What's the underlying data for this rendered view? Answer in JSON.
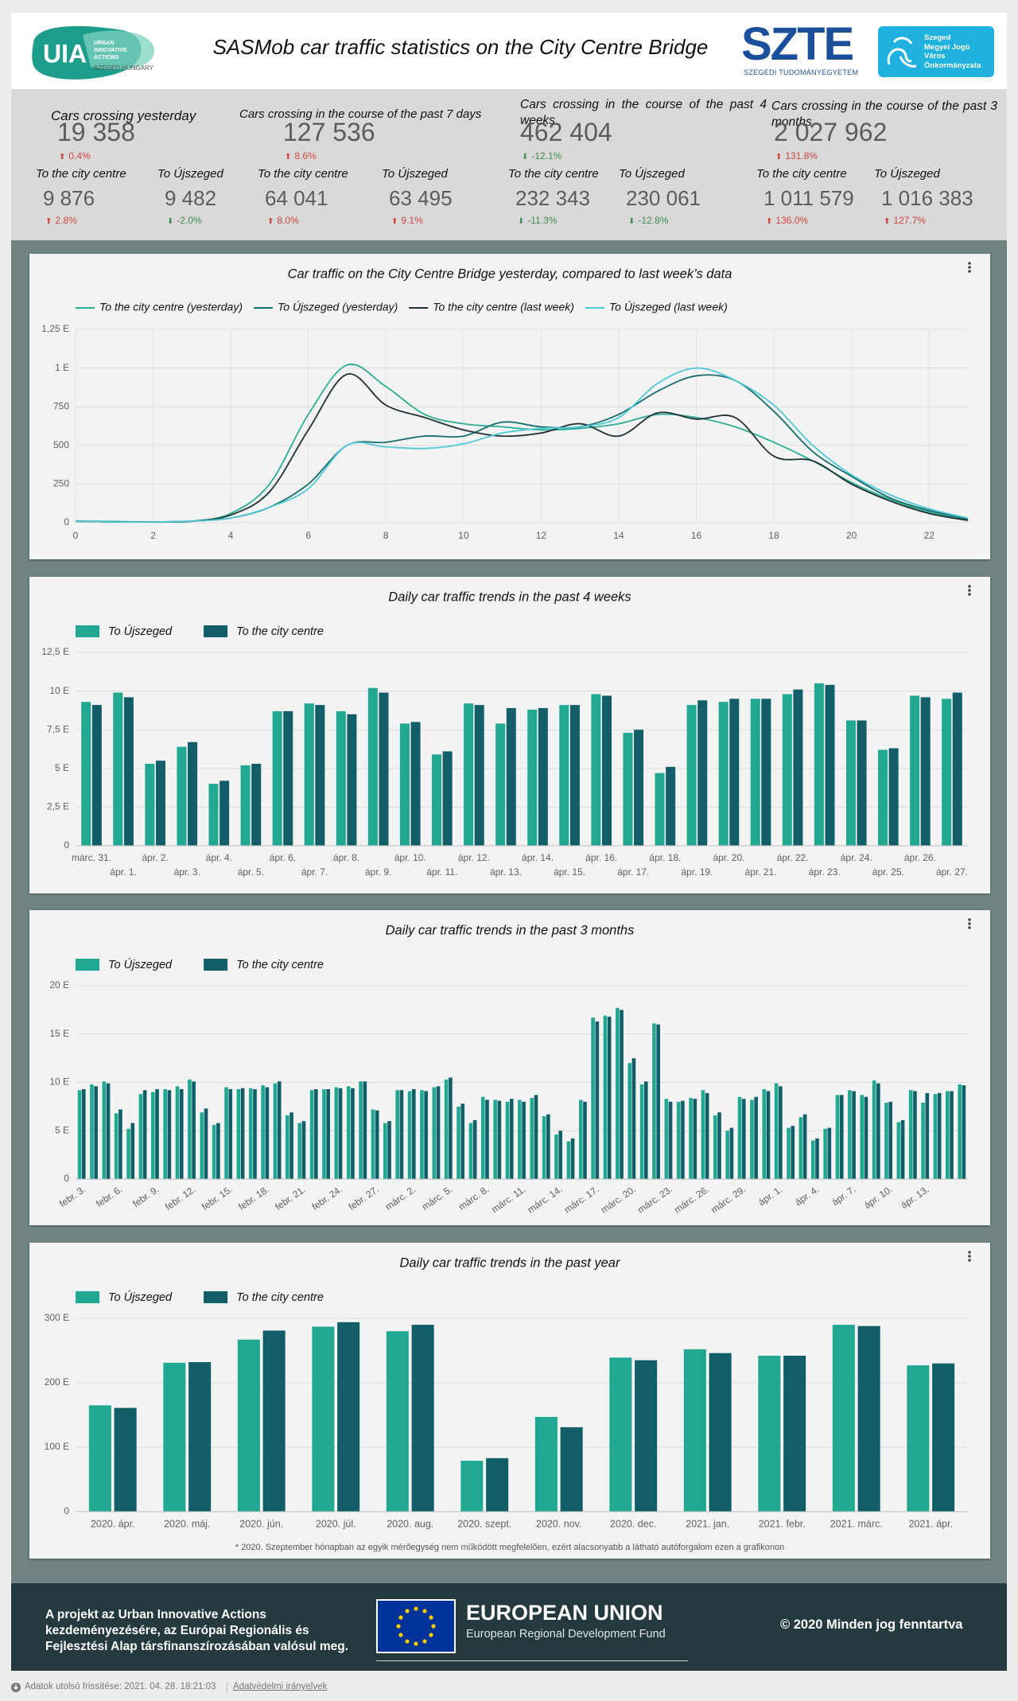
{
  "header": {
    "uia_logo": {
      "text": "UIA",
      "lines": [
        "URBAN",
        "INNOVATIVE",
        "ACTIONS"
      ],
      "location": "SZEGED HUNGARY"
    },
    "title": "SASMob car traffic statistics on the City Centre Bridge",
    "szte_logo": {
      "text": "SZTE",
      "subtitle": "SZEGEDI TUDOMÁNYEGYETEM"
    },
    "city_logo": {
      "lines": [
        "Szeged",
        "Megyei Jogú",
        "Város",
        "Önkormányzata"
      ]
    }
  },
  "kpis": [
    {
      "title": "Cars crossing yesterday",
      "value": "19 358",
      "change": "0.4%",
      "subs": [
        {
          "label": "To the city centre",
          "value": "9 876",
          "change": "2.8%"
        },
        {
          "label": "To Újszeged",
          "value": "9 482",
          "change": "-2.0%"
        }
      ]
    },
    {
      "title": "Cars crossing in the course of the past 7 days",
      "value": "127 536",
      "change": "8.6%",
      "subs": [
        {
          "label": "To the city centre",
          "value": "64 041",
          "change": "8.0%"
        },
        {
          "label": "To Újszeged",
          "value": "63 495",
          "change": "9.1%"
        }
      ]
    },
    {
      "title": "Cars crossing in the course of the past 4 weeks",
      "value": "462 404",
      "change": "-12.1%",
      "subs": [
        {
          "label": "To the city centre",
          "value": "232 343",
          "change": "-11.3%"
        },
        {
          "label": "To Újszeged",
          "value": "230 061",
          "change": "-12.8%"
        }
      ]
    },
    {
      "title": "Cars crossing in the course of the past 3 months",
      "value": "2 027 962",
      "change": "131.8%",
      "subs": [
        {
          "label": "To the city centre",
          "value": "1 011 579",
          "change": "136.0%"
        },
        {
          "label": "To Újszeged",
          "value": "1 016 383",
          "change": "127.7%"
        }
      ]
    }
  ],
  "chart_data": [
    {
      "type": "line",
      "title": "Car traffic on the City Centre Bridge yesterday, compared to last week’s data",
      "x": [
        0,
        1,
        2,
        3,
        4,
        5,
        6,
        7,
        8,
        9,
        10,
        11,
        12,
        13,
        14,
        15,
        16,
        17,
        18,
        19,
        20,
        21,
        22,
        23
      ],
      "xlim": [
        0,
        23
      ],
      "xticks": [
        0,
        2,
        4,
        6,
        8,
        10,
        12,
        14,
        16,
        18,
        20,
        22
      ],
      "ylim": [
        0,
        1250
      ],
      "yticks": [
        0,
        250,
        500,
        750,
        {
          "value": 1000,
          "label": "1 E"
        },
        {
          "value": 1250,
          "label": "1,25 E"
        }
      ],
      "grid": true,
      "series": [
        {
          "name": "To the city centre (yesterday)",
          "color": "#2bae94",
          "values": [
            10,
            8,
            5,
            10,
            60,
            250,
            700,
            1020,
            880,
            700,
            640,
            620,
            600,
            610,
            640,
            700,
            680,
            620,
            520,
            400,
            260,
            150,
            70,
            20
          ]
        },
        {
          "name": "To Újszeged (yesterday)",
          "color": "#166e6c",
          "values": [
            10,
            5,
            5,
            10,
            30,
            100,
            250,
            500,
            520,
            560,
            560,
            650,
            620,
            620,
            700,
            850,
            950,
            920,
            720,
            460,
            300,
            160,
            80,
            25
          ]
        },
        {
          "name": "To the city centre (last week)",
          "color": "#1f3034",
          "values": [
            10,
            5,
            5,
            10,
            50,
            200,
            600,
            960,
            760,
            680,
            600,
            560,
            580,
            640,
            560,
            710,
            670,
            680,
            430,
            400,
            250,
            140,
            60,
            15
          ]
        },
        {
          "name": "To Újszeged (last week)",
          "color": "#4fc9d8",
          "values": [
            10,
            5,
            5,
            10,
            30,
            100,
            220,
            500,
            490,
            480,
            510,
            580,
            610,
            620,
            680,
            900,
            1000,
            920,
            760,
            500,
            310,
            180,
            90,
            30
          ]
        }
      ]
    },
    {
      "type": "bar",
      "title": "Daily car traffic trends in the past 4 weeks",
      "categories": [
        "márc. 31.",
        "ápr. 1.",
        "ápr. 2.",
        "ápr. 3.",
        "ápr. 4.",
        "ápr. 5.",
        "ápr. 6.",
        "ápr. 7.",
        "ápr. 8.",
        "ápr. 9.",
        "ápr. 10.",
        "ápr. 11.",
        "ápr. 12.",
        "ápr. 13.",
        "ápr. 14.",
        "ápr. 15.",
        "ápr. 16.",
        "ápr. 17.",
        "ápr. 18.",
        "ápr. 19.",
        "ápr. 20.",
        "ápr. 21.",
        "ápr. 22.",
        "ápr. 23.",
        "ápr. 24.",
        "ápr. 25.",
        "ápr. 26.",
        "ápr. 27."
      ],
      "ylim": [
        0,
        12500
      ],
      "yticks": [
        0,
        {
          "value": 2500,
          "label": "2,5 E"
        },
        {
          "value": 5000,
          "label": "5 E"
        },
        {
          "value": 7500,
          "label": "7,5 E"
        },
        {
          "value": 10000,
          "label": "10 E"
        },
        {
          "value": 12500,
          "label": "12,5 E"
        }
      ],
      "grid": true,
      "series": [
        {
          "name": "To Újszeged",
          "color": "#20a892",
          "values": [
            9300,
            9900,
            5300,
            6400,
            4000,
            5200,
            8700,
            9200,
            8700,
            10200,
            7900,
            5900,
            9200,
            7900,
            8800,
            9100,
            9800,
            7300,
            4700,
            9100,
            9300,
            9500,
            9800,
            10500,
            8100,
            6200,
            9700,
            9500
          ]
        },
        {
          "name": "To the city centre",
          "color": "#125e68",
          "values": [
            9100,
            9600,
            5500,
            6700,
            4200,
            5300,
            8700,
            9100,
            8500,
            9900,
            8000,
            6100,
            9100,
            8900,
            8900,
            9100,
            9700,
            7500,
            5100,
            9400,
            9500,
            9500,
            10100,
            10400,
            8100,
            6300,
            9600,
            9900
          ]
        }
      ]
    },
    {
      "type": "bar",
      "title": "Daily car traffic trends in the past 3 months",
      "categories": [
        "febr. 3.",
        null,
        null,
        "febr. 6.",
        null,
        null,
        "febr. 9.",
        null,
        null,
        "febr. 12.",
        null,
        null,
        "febr. 15.",
        null,
        null,
        "febr. 18.",
        null,
        null,
        "febr. 21.",
        null,
        null,
        "febr. 24.",
        null,
        null,
        "febr. 27.",
        null,
        null,
        "márc. 2.",
        null,
        null,
        "márc. 5.",
        null,
        null,
        "márc. 8.",
        null,
        null,
        "márc. 11.",
        null,
        null,
        "márc. 14.",
        null,
        null,
        "márc. 17.",
        null,
        null,
        "márc. 20.",
        null,
        null,
        "márc. 23.",
        null,
        null,
        "márc. 26.",
        null,
        null,
        "márc. 29.",
        null,
        null,
        "ápr. 1.",
        null,
        null,
        "ápr. 4.",
        null,
        null,
        "ápr. 7.",
        null,
        null,
        "ápr. 10.",
        null,
        null,
        "ápr. 13.",
        null,
        null,
        null
      ],
      "ylim": [
        0,
        20000
      ],
      "yticks": [
        0,
        {
          "value": 5000,
          "label": "5 E"
        },
        {
          "value": 10000,
          "label": "10 E"
        },
        {
          "value": 15000,
          "label": "15 E"
        },
        {
          "value": 20000,
          "label": "20 E"
        }
      ],
      "grid": true,
      "series": [
        {
          "name": "To Újszeged",
          "color": "#20a892",
          "values": [
            9200,
            9800,
            10100,
            6800,
            5200,
            8800,
            9000,
            9300,
            9600,
            10300,
            6900,
            5600,
            9500,
            9300,
            9400,
            9700,
            9900,
            6600,
            5800,
            9200,
            9300,
            9500,
            9600,
            10100,
            7200,
            5800,
            9200,
            9100,
            9200,
            9500,
            10300,
            7500,
            5800,
            8500,
            8200,
            8000,
            8200,
            8400,
            6500,
            4600,
            3900,
            8200,
            16700,
            16900,
            17700,
            12000,
            9800,
            16100,
            8300,
            8000,
            8400,
            9200,
            6600,
            5000,
            8500,
            8200,
            9300,
            9900,
            5300,
            6400,
            4000,
            5200,
            8700,
            9200,
            8700,
            10200,
            7900,
            5900,
            9200,
            7900,
            8800,
            9100,
            9800
          ]
        },
        {
          "name": "To the city centre",
          "color": "#125e68",
          "values": [
            9300,
            9600,
            9900,
            7200,
            5800,
            9200,
            9300,
            9200,
            9300,
            10100,
            7300,
            5800,
            9300,
            9400,
            9300,
            9500,
            10100,
            6900,
            6000,
            9300,
            9300,
            9400,
            9400,
            10100,
            7100,
            6000,
            9200,
            9300,
            9100,
            9600,
            10500,
            7800,
            6100,
            8200,
            8100,
            8300,
            8000,
            8700,
            6700,
            5000,
            4200,
            8000,
            16300,
            16800,
            17500,
            12500,
            10100,
            16000,
            8000,
            8100,
            8300,
            8900,
            6900,
            5300,
            8300,
            8500,
            9100,
            9600,
            5500,
            6700,
            4200,
            5300,
            8700,
            9100,
            8500,
            9900,
            8000,
            6100,
            9100,
            8900,
            8900,
            9100,
            9700
          ]
        }
      ]
    },
    {
      "type": "bar",
      "title": "Daily car traffic trends in the past year",
      "categories": [
        "2020. ápr.",
        "2020. máj.",
        "2020. jún.",
        "2020. júl.",
        "2020. aug.",
        "2020. szept.",
        "2020. nov.",
        "2020. dec.",
        "2021. jan.",
        "2021. febr.",
        "2021. márc.",
        "2021. ápr."
      ],
      "ylim": [
        0,
        300000
      ],
      "yticks": [
        0,
        {
          "value": 100000,
          "label": "100 E"
        },
        {
          "value": 200000,
          "label": "200 E"
        },
        {
          "value": 300000,
          "label": "300 E"
        }
      ],
      "grid": true,
      "note": "* 2020. Szeptember hónapban az egyik mérőegység nem működött megfelelően, ezért alacsonyabb a látható  autóforgalom ezen a grafikonon",
      "series": [
        {
          "name": "To Újszeged",
          "color": "#20a892",
          "values": [
            165000,
            231000,
            267000,
            287000,
            280000,
            79000,
            147000,
            239000,
            252000,
            242000,
            290000,
            227000
          ]
        },
        {
          "name": "To the city centre",
          "color": "#125e68",
          "values": [
            161000,
            232000,
            281000,
            294000,
            290000,
            83000,
            131000,
            235000,
            246000,
            242000,
            288000,
            230000
          ]
        }
      ]
    }
  ],
  "footer": {
    "left_lines": [
      "A projekt az Urban Innovative Actions",
      "kezdeményezésére, az Európai Regionális és",
      "Fejlesztési Alap társfinanszírozásában valósul meg."
    ],
    "eu_title": "EUROPEAN UNION",
    "eu_subtitle": "European Regional Development Fund",
    "copyright": "© 2020 Minden jog fenntartva"
  },
  "status_bar": {
    "last_update": "Adatok utolsó frissítése: 2021. 04. 28. 18:21:03",
    "privacy_link": "Adatvédelmi irányelvek"
  }
}
